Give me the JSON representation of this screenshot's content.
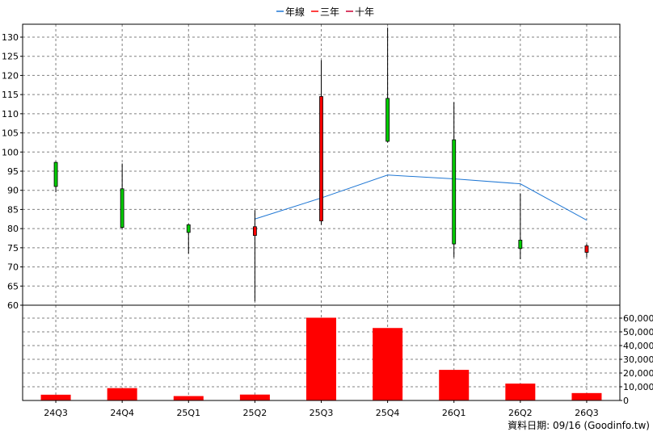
{
  "chart_data": {
    "type": "candlestick",
    "legend": [
      {
        "label": "年線",
        "color": "#1f77d4"
      },
      {
        "label": "三年",
        "color": "#ff0000"
      },
      {
        "label": "十年",
        "color": "#cc0033"
      }
    ],
    "categories": [
      "24Q3",
      "24Q4",
      "25Q1",
      "25Q2",
      "25Q3",
      "25Q4",
      "26Q1",
      "26Q2",
      "26Q3"
    ],
    "price_axis": {
      "min": 60,
      "max": 130,
      "ticks": [
        60,
        65,
        70,
        75,
        80,
        85,
        90,
        95,
        100,
        105,
        110,
        115,
        120,
        125,
        130
      ]
    },
    "volume_axis": {
      "min": 0,
      "max": 60000,
      "ticks": [
        "0",
        "10,000",
        "20,000",
        "30,000",
        "40,000",
        "50,000",
        "60,000"
      ]
    },
    "candles": [
      {
        "open": 91,
        "high": 97.5,
        "low": 89.5,
        "close": 97.3
      },
      {
        "open": 80.3,
        "high": 97,
        "low": 80,
        "close": 90.4
      },
      {
        "open": 79,
        "high": 81.2,
        "low": 73.5,
        "close": 81
      },
      {
        "open": 80.5,
        "high": 84.8,
        "low": 61,
        "close": 78.2
      },
      {
        "open": 114.5,
        "high": 124,
        "low": 81,
        "close": 82
      },
      {
        "open": 102.8,
        "high": 132.5,
        "low": 102.5,
        "close": 114
      },
      {
        "open": 76,
        "high": 113,
        "low": 72.5,
        "close": 103.2
      },
      {
        "open": 74.8,
        "high": 89.2,
        "low": 72,
        "close": 77
      },
      {
        "open": 75.5,
        "high": 76,
        "low": 72.5,
        "close": 73.8
      }
    ],
    "year_line": [
      null,
      null,
      null,
      82.5,
      88,
      94,
      93,
      91.7,
      82.2
    ],
    "volumes": [
      4200,
      9000,
      3200,
      4300,
      60300,
      52800,
      22300,
      12300,
      5400
    ]
  },
  "colors": {
    "up": "#00cc00",
    "down": "#ff0000",
    "volume": "#ff0000",
    "year_line": "#1f77d4",
    "grid": "#808080"
  },
  "footer": {
    "source": "資料日期: 09/16  (Goodinfo.tw)"
  }
}
